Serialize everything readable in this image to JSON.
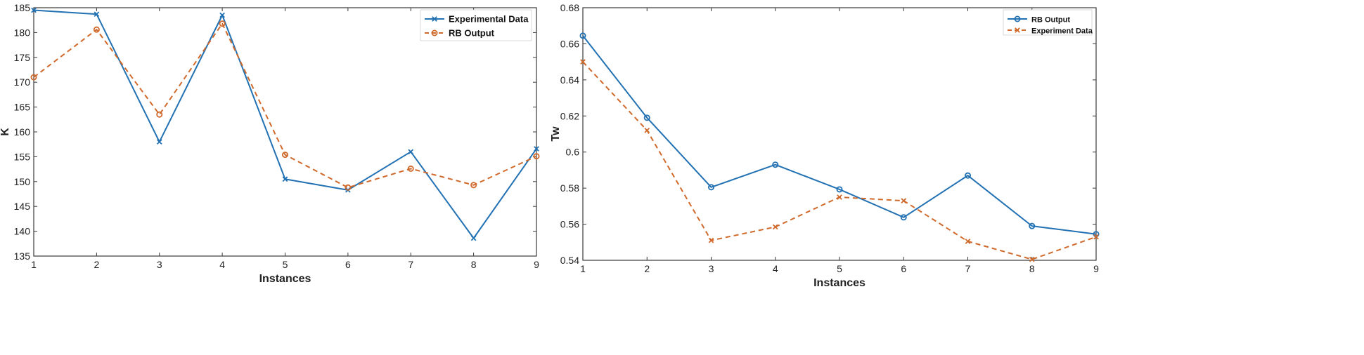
{
  "colors": {
    "blue": "#2271b3",
    "orange": "#d06a2c"
  },
  "chart_data": [
    {
      "type": "line",
      "title": "",
      "xlabel": "Instances",
      "ylabel": "K",
      "x": [
        1,
        2,
        3,
        4,
        5,
        6,
        7,
        8,
        9
      ],
      "xlim": [
        1,
        9
      ],
      "ylim": [
        135,
        185
      ],
      "yticks": [
        135,
        140,
        145,
        150,
        155,
        160,
        165,
        170,
        175,
        180,
        185
      ],
      "legend_position": "top-right",
      "series": [
        {
          "name": "Experimental Data",
          "color": "#2271b3",
          "style": "solid",
          "marker": "x",
          "values": [
            184.5,
            183.7,
            158.0,
            183.5,
            150.5,
            148.3,
            156.0,
            138.6,
            156.6
          ]
        },
        {
          "name": "RB Output",
          "color": "#d06a2c",
          "style": "dashed",
          "marker": "o",
          "values": [
            171.0,
            180.6,
            163.5,
            181.8,
            155.4,
            148.8,
            152.6,
            149.3,
            155.1
          ]
        }
      ]
    },
    {
      "type": "line",
      "title": "",
      "xlabel": "Instances",
      "ylabel": "Tw",
      "x": [
        1,
        2,
        3,
        4,
        5,
        6,
        7,
        8,
        9
      ],
      "xlim": [
        1,
        9
      ],
      "ylim": [
        0.54,
        0.68
      ],
      "yticks": [
        0.54,
        0.56,
        0.58,
        0.6,
        0.62,
        0.64,
        0.66,
        0.68
      ],
      "legend_position": "top-right",
      "series": [
        {
          "name": "RB Output",
          "color": "#2271b3",
          "style": "solid",
          "marker": "o",
          "values": [
            0.6645,
            0.619,
            0.5805,
            0.593,
            0.5793,
            0.5638,
            0.587,
            0.559,
            0.5545
          ]
        },
        {
          "name": "Experiment Data",
          "color": "#d06a2c",
          "style": "dashed",
          "marker": "x",
          "values": [
            0.65,
            0.612,
            0.551,
            0.5585,
            0.575,
            0.573,
            0.5505,
            0.5405,
            0.553
          ]
        }
      ]
    }
  ]
}
